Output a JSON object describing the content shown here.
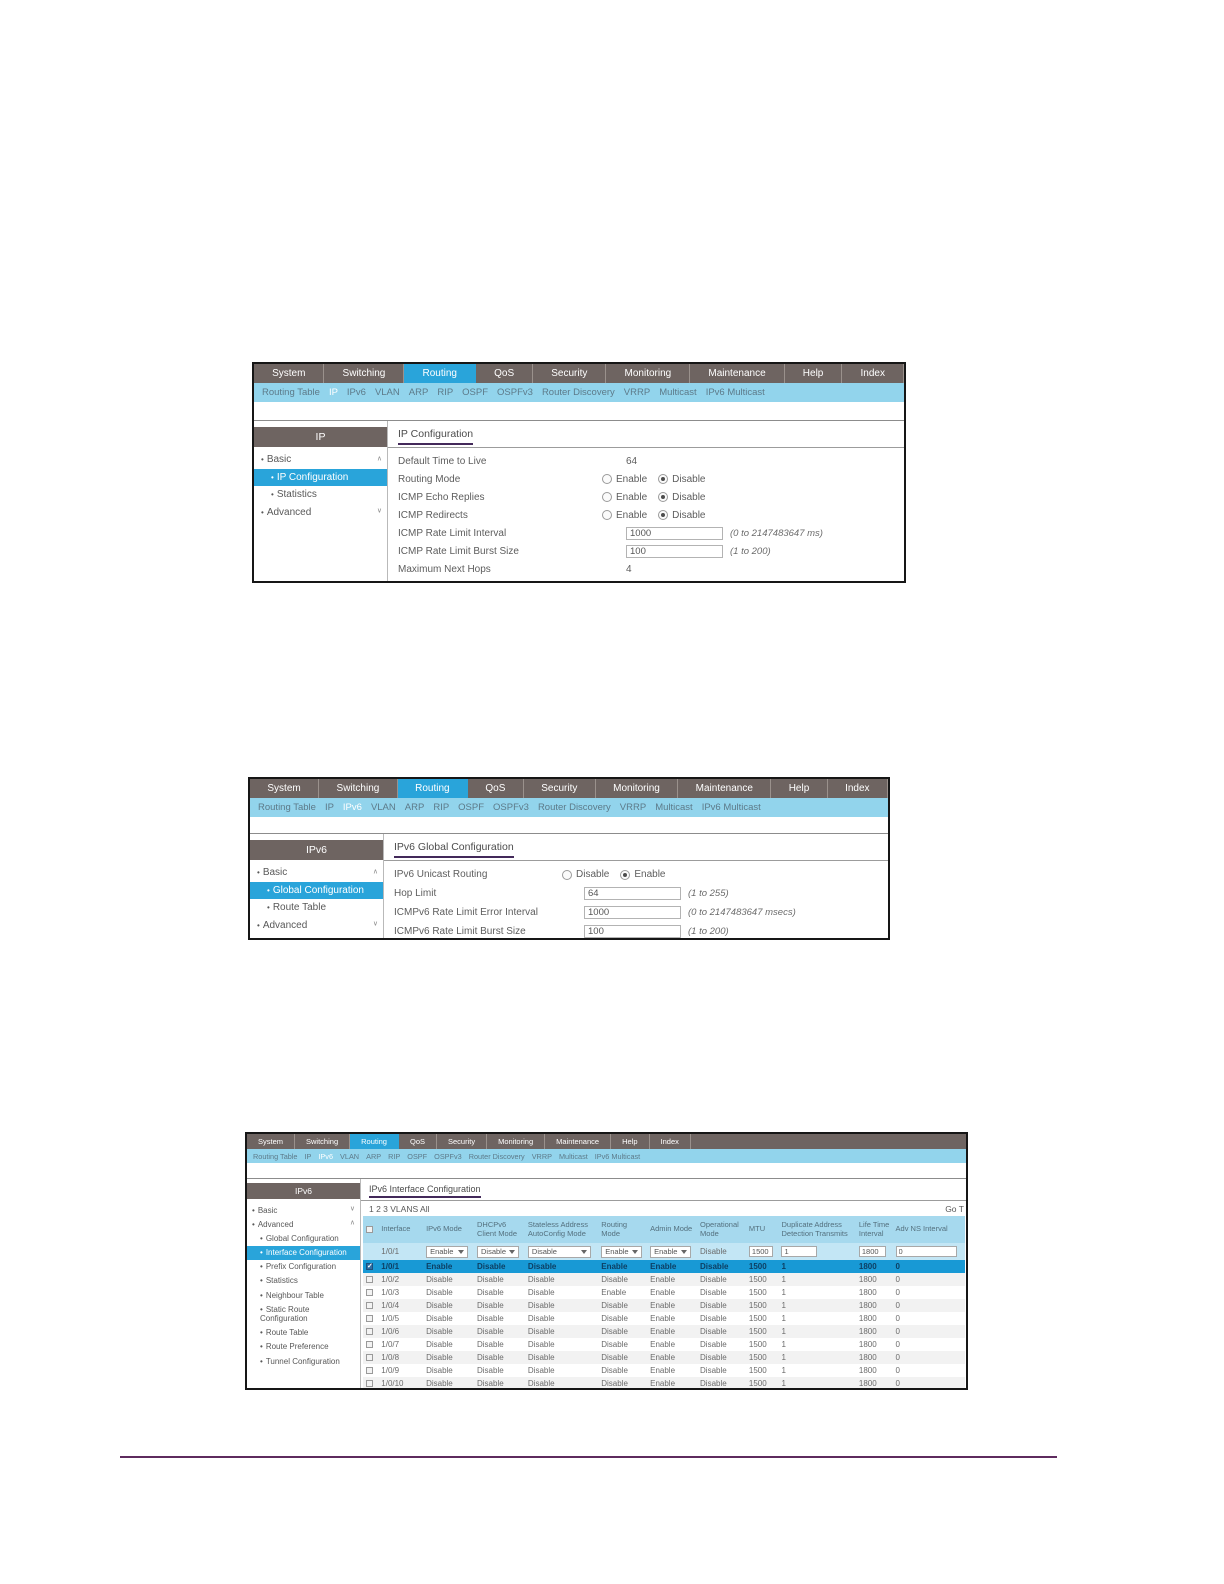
{
  "colors": {
    "nav_bg": "#6e6461",
    "accent_blue": "#29a4da",
    "subnav_bg": "#92d4ec",
    "title_underline": "#43295a",
    "table_header_bg": "#a6d9ee",
    "selected_row_bg": "#1899d5",
    "selected_row_text": "#0d3f63",
    "page_rule": "#5e2b5e"
  },
  "nav": {
    "tabs": [
      "System",
      "Switching",
      "Routing",
      "QoS",
      "Security",
      "Monitoring",
      "Maintenance",
      "Help",
      "Index"
    ],
    "active": "Routing",
    "subnav": [
      "Routing Table",
      "IP",
      "IPv6",
      "VLAN",
      "ARP",
      "RIP",
      "OSPF",
      "OSPFv3",
      "Router Discovery",
      "VRRP",
      "Multicast",
      "IPv6 Multicast"
    ]
  },
  "s1": {
    "subnav_active": "IP",
    "sidebar": {
      "header": "IP",
      "items": [
        {
          "label": "Basic",
          "arrow": "up"
        },
        {
          "label": "IP Configuration",
          "level": 1,
          "selected": true
        },
        {
          "label": "Statistics",
          "level": 1
        },
        {
          "label": "Advanced",
          "arrow": "down"
        }
      ]
    },
    "title": "IP Configuration",
    "fields": [
      {
        "label": "Default Time to Live",
        "type": "static",
        "value": "64"
      },
      {
        "label": "Routing Mode",
        "type": "radio",
        "options": [
          "Enable",
          "Disable"
        ],
        "selected": "Disable"
      },
      {
        "label": "ICMP Echo Replies",
        "type": "radio",
        "options": [
          "Enable",
          "Disable"
        ],
        "selected": "Disable"
      },
      {
        "label": "ICMP Redirects",
        "type": "radio",
        "options": [
          "Enable",
          "Disable"
        ],
        "selected": "Disable"
      },
      {
        "label": "ICMP Rate Limit Interval",
        "type": "input",
        "value": "1000",
        "note": "(0 to 2147483647 ms)"
      },
      {
        "label": "ICMP Rate Limit Burst Size",
        "type": "input",
        "value": "100",
        "note": "(1 to 200)"
      },
      {
        "label": "Maximum Next Hops",
        "type": "static",
        "value": "4"
      }
    ]
  },
  "s2": {
    "subnav_active": "IPv6",
    "sidebar": {
      "header": "IPv6",
      "items": [
        {
          "label": "Basic",
          "arrow": "up"
        },
        {
          "label": "Global Configuration",
          "level": 1,
          "selected": true
        },
        {
          "label": "Route Table",
          "level": 1
        },
        {
          "label": "Advanced",
          "arrow": "down"
        }
      ]
    },
    "title": "IPv6 Global Configuration",
    "fields": [
      {
        "label": "IPv6 Unicast Routing",
        "type": "radio",
        "options": [
          "Disable",
          "Enable"
        ],
        "selected": "Enable"
      },
      {
        "label": "Hop Limit",
        "type": "input",
        "value": "64",
        "note": "(1 to 255)"
      },
      {
        "label": "ICMPv6 Rate Limit Error Interval",
        "type": "input",
        "value": "1000",
        "note": "(0 to 2147483647 msecs)"
      },
      {
        "label": "ICMPv6 Rate Limit Burst Size",
        "type": "input",
        "value": "100",
        "note": "(1 to 200)"
      }
    ]
  },
  "s3": {
    "subnav_active": "IPv6",
    "sidebar": {
      "header": "IPv6",
      "items": [
        {
          "label": "Basic",
          "arrow": "down"
        },
        {
          "label": "Advanced",
          "arrow": "up"
        },
        {
          "label": "Global Configuration",
          "level": 1
        },
        {
          "label": "Interface Configuration",
          "level": 1,
          "selected": true
        },
        {
          "label": "Prefix Configuration",
          "level": 1
        },
        {
          "label": "Statistics",
          "level": 1
        },
        {
          "label": "Neighbour Table",
          "level": 1
        },
        {
          "label": "Static Route Configuration",
          "level": 1
        },
        {
          "label": "Route Table",
          "level": 1
        },
        {
          "label": "Route Preference",
          "level": 1
        },
        {
          "label": "Tunnel Configuration",
          "level": 1
        }
      ]
    },
    "title": "IPv6 Interface Configuration",
    "pagination": "1 2 3 VLANS All",
    "goto": "Go T",
    "table": {
      "columns": [
        "Interface",
        "IPv6 Mode",
        "DHCPv6 Client Mode",
        "Stateless Address AutoConfig Mode",
        "Routing Mode",
        "Admin Mode",
        "Operational Mode",
        "MTU",
        "Duplicate Address Detection Transmits",
        "Life Time Interval",
        "Adv NS Interval"
      ],
      "edit_row": {
        "interface": "1/0/1",
        "selects": [
          "Enable",
          "Disable",
          "Disable",
          "Enable",
          "Enable"
        ],
        "operational_mode": "Disable",
        "inputs": [
          "1500",
          "1",
          "1800",
          "0"
        ]
      },
      "rows": [
        {
          "interface": "1/0/1",
          "checked": true,
          "highlighted": true,
          "values": [
            "Enable",
            "Disable",
            "Disable",
            "Enable",
            "Enable",
            "Disable",
            "1500",
            "1",
            "1800",
            "0"
          ]
        },
        {
          "interface": "1/0/2",
          "values": [
            "Disable",
            "Disable",
            "Disable",
            "Disable",
            "Enable",
            "Disable",
            "1500",
            "1",
            "1800",
            "0"
          ]
        },
        {
          "interface": "1/0/3",
          "values": [
            "Disable",
            "Disable",
            "Disable",
            "Enable",
            "Enable",
            "Disable",
            "1500",
            "1",
            "1800",
            "0"
          ]
        },
        {
          "interface": "1/0/4",
          "values": [
            "Disable",
            "Disable",
            "Disable",
            "Disable",
            "Enable",
            "Disable",
            "1500",
            "1",
            "1800",
            "0"
          ]
        },
        {
          "interface": "1/0/5",
          "values": [
            "Disable",
            "Disable",
            "Disable",
            "Disable",
            "Enable",
            "Disable",
            "1500",
            "1",
            "1800",
            "0"
          ]
        },
        {
          "interface": "1/0/6",
          "values": [
            "Disable",
            "Disable",
            "Disable",
            "Disable",
            "Enable",
            "Disable",
            "1500",
            "1",
            "1800",
            "0"
          ]
        },
        {
          "interface": "1/0/7",
          "values": [
            "Disable",
            "Disable",
            "Disable",
            "Disable",
            "Enable",
            "Disable",
            "1500",
            "1",
            "1800",
            "0"
          ]
        },
        {
          "interface": "1/0/8",
          "values": [
            "Disable",
            "Disable",
            "Disable",
            "Disable",
            "Enable",
            "Disable",
            "1500",
            "1",
            "1800",
            "0"
          ]
        },
        {
          "interface": "1/0/9",
          "values": [
            "Disable",
            "Disable",
            "Disable",
            "Disable",
            "Enable",
            "Disable",
            "1500",
            "1",
            "1800",
            "0"
          ]
        },
        {
          "interface": "1/0/10",
          "values": [
            "Disable",
            "Disable",
            "Disable",
            "Disable",
            "Enable",
            "Disable",
            "1500",
            "1",
            "1800",
            "0"
          ]
        }
      ]
    }
  }
}
